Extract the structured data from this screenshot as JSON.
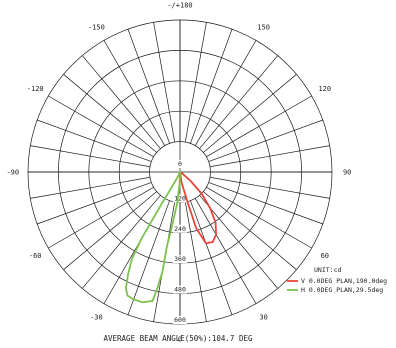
{
  "chart_data": {
    "type": "polar",
    "angle_labels": [
      {
        "deg": 180,
        "text": "-/+180"
      },
      {
        "deg": 150,
        "text": "150"
      },
      {
        "deg": -150,
        "text": "-150"
      },
      {
        "deg": 120,
        "text": "120"
      },
      {
        "deg": -120,
        "text": "-120"
      },
      {
        "deg": 90,
        "text": "90"
      },
      {
        "deg": -90,
        "text": "-90"
      },
      {
        "deg": 60,
        "text": "60"
      },
      {
        "deg": -60,
        "text": "-60"
      },
      {
        "deg": 30,
        "text": "30"
      },
      {
        "deg": -30,
        "text": "-30"
      },
      {
        "deg": 0,
        "text": "0"
      }
    ],
    "radial_labels": [
      "0",
      "120",
      "240",
      "360",
      "480",
      "600"
    ],
    "rmax": 600,
    "unit_label": "UNIT:cd",
    "series": [
      {
        "name": "V 0.0DEG PLAN,190.0deg",
        "color": "#e8463a",
        "points": [
          [
            0,
            0
          ],
          [
            8,
            40
          ],
          [
            14,
            120
          ],
          [
            16,
            230
          ],
          [
            20,
            300
          ],
          [
            25,
            305
          ],
          [
            30,
            285
          ],
          [
            35,
            245
          ],
          [
            40,
            185
          ],
          [
            45,
            120
          ],
          [
            50,
            55
          ],
          [
            55,
            12
          ],
          [
            60,
            0
          ]
        ]
      },
      {
        "name": "H 0.0DEG PLAN,29.5deg",
        "color": "#7cc24e",
        "points": [
          [
            0,
            0
          ],
          [
            -2,
            45
          ],
          [
            -5,
            120
          ],
          [
            -8,
            200
          ],
          [
            -10,
            300
          ],
          [
            -10,
            400
          ],
          [
            -11,
            465
          ],
          [
            -12,
            520
          ],
          [
            -16,
            535
          ],
          [
            -20,
            535
          ],
          [
            -23,
            530
          ],
          [
            -25,
            505
          ],
          [
            -27,
            450
          ],
          [
            -29,
            390
          ],
          [
            -30,
            300
          ],
          [
            -30,
            220
          ],
          [
            -30,
            150
          ],
          [
            -29,
            85
          ],
          [
            -25,
            20
          ],
          [
            -20,
            0
          ]
        ]
      }
    ],
    "caption": "AVERAGE BEAM ANGLE(50%):104.7 DEG"
  }
}
